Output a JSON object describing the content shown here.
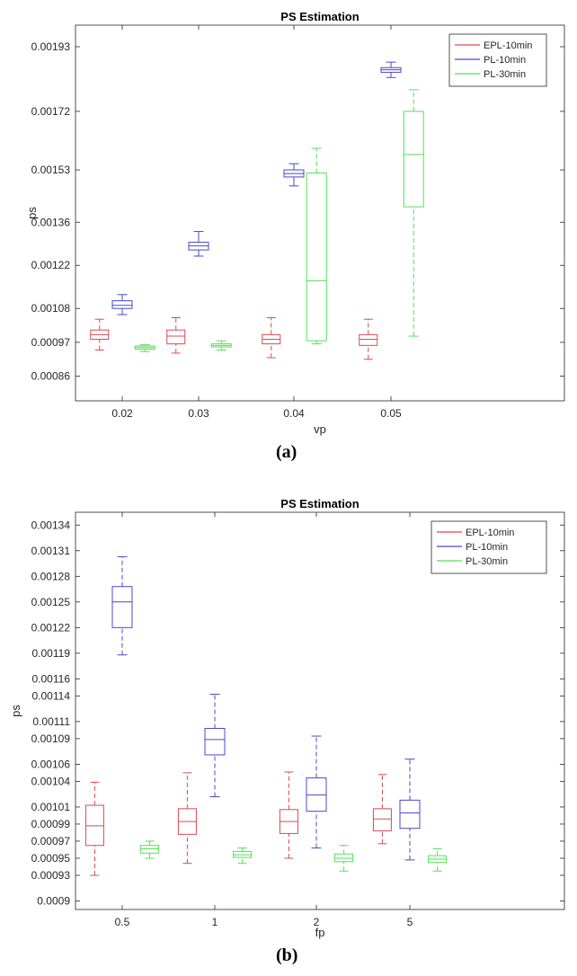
{
  "captions": {
    "a": "(a)",
    "b": "(b)"
  },
  "colors": {
    "EPL-10min": "#e0484f",
    "PL-10min": "#4a48c8",
    "PL-30min": "#55e055"
  },
  "chart_data": [
    {
      "type": "boxplot",
      "title": "PS Estimation",
      "xlabel": "vp",
      "ylabel": "ps",
      "categories": [
        "0.02",
        "0.03",
        "0.04",
        "0.05"
      ],
      "yticks": [
        "0.00086",
        "0.00097",
        "0.00108",
        "0.00122",
        "0.00136",
        "0.00153",
        "0.00172",
        "0.00193"
      ],
      "ylim": [
        0.00078,
        0.002
      ],
      "legend": [
        "EPL-10min",
        "PL-10min",
        "PL-30min"
      ],
      "legend_position": "top-right",
      "series": [
        {
          "name": "EPL-10min",
          "dashed": true,
          "boxes": [
            {
              "min": 0.000945,
              "q1": 0.00098,
              "median": 0.000995,
              "q3": 0.00101,
              "max": 0.001045
            },
            {
              "min": 0.000935,
              "q1": 0.000965,
              "median": 0.00099,
              "q3": 0.00101,
              "max": 0.00105
            },
            {
              "min": 0.00092,
              "q1": 0.000965,
              "median": 0.00098,
              "q3": 0.000995,
              "max": 0.00105
            },
            {
              "min": 0.000915,
              "q1": 0.00096,
              "median": 0.00098,
              "q3": 0.000995,
              "max": 0.001045
            }
          ]
        },
        {
          "name": "PL-10min",
          "dashed": false,
          "boxes": [
            {
              "min": 0.00106,
              "q1": 0.00108,
              "median": 0.00109,
              "q3": 0.001105,
              "max": 0.001125
            },
            {
              "min": 0.00125,
              "q1": 0.00127,
              "median": 0.001283,
              "q3": 0.001295,
              "max": 0.00133
            },
            {
              "min": 0.001478,
              "q1": 0.001507,
              "median": 0.001518,
              "q3": 0.00153,
              "max": 0.00155
            },
            {
              "min": 0.00183,
              "q1": 0.001847,
              "median": 0.001855,
              "q3": 0.001862,
              "max": 0.00188
            }
          ]
        },
        {
          "name": "PL-30min",
          "dashed": true,
          "boxes": [
            {
              "min": 0.00094,
              "q1": 0.000948,
              "median": 0.000953,
              "q3": 0.000958,
              "max": 0.000962
            },
            {
              "min": 0.000945,
              "q1": 0.000955,
              "median": 0.00096,
              "q3": 0.000965,
              "max": 0.000975
            },
            {
              "min": 0.000965,
              "q1": 0.000975,
              "median": 0.00117,
              "q3": 0.00152,
              "max": 0.0016
            },
            {
              "min": 0.00099,
              "q1": 0.00141,
              "median": 0.00158,
              "q3": 0.00172,
              "max": 0.00179
            }
          ]
        }
      ]
    },
    {
      "type": "boxplot",
      "title": "PS Estimation",
      "xlabel": "fp",
      "ylabel": "ps",
      "categories": [
        "0.5",
        "1",
        "2",
        "5"
      ],
      "yticks": [
        "0.0009",
        "0.00093",
        "0.00095",
        "0.00097",
        "0.00099",
        "0.00101",
        "0.00104",
        "0.00106",
        "0.00109",
        "0.00111",
        "0.00114",
        "0.00116",
        "0.00119",
        "0.00122",
        "0.00125",
        "0.00128",
        "0.00131",
        "0.00134"
      ],
      "ylim": [
        0.00089,
        0.001355
      ],
      "legend": [
        "EPL-10min",
        "PL-10min",
        "PL-30min"
      ],
      "legend_position": "top-right",
      "series": [
        {
          "name": "EPL-10min",
          "dashed": true,
          "boxes": [
            {
              "min": 0.00093,
              "q1": 0.000965,
              "median": 0.000988,
              "q3": 0.001012,
              "max": 0.001039
            },
            {
              "min": 0.000944,
              "q1": 0.000978,
              "median": 0.000993,
              "q3": 0.001008,
              "max": 0.00105
            },
            {
              "min": 0.00095,
              "q1": 0.000979,
              "median": 0.000993,
              "q3": 0.001007,
              "max": 0.001051
            },
            {
              "min": 0.000967,
              "q1": 0.000982,
              "median": 0.000996,
              "q3": 0.001008,
              "max": 0.001048
            }
          ]
        },
        {
          "name": "PL-10min",
          "dashed": true,
          "boxes": [
            {
              "min": 0.001188,
              "q1": 0.00122,
              "median": 0.00125,
              "q3": 0.001268,
              "max": 0.001303
            },
            {
              "min": 0.001022,
              "q1": 0.001071,
              "median": 0.001089,
              "q3": 0.001102,
              "max": 0.001142
            },
            {
              "min": 0.000962,
              "q1": 0.001005,
              "median": 0.001024,
              "q3": 0.001044,
              "max": 0.001093
            },
            {
              "min": 0.000948,
              "q1": 0.000985,
              "median": 0.001003,
              "q3": 0.001018,
              "max": 0.001066
            }
          ]
        },
        {
          "name": "PL-30min",
          "dashed": true,
          "boxes": [
            {
              "min": 0.00095,
              "q1": 0.000956,
              "median": 0.000961,
              "q3": 0.000965,
              "max": 0.00097
            },
            {
              "min": 0.000944,
              "q1": 0.000951,
              "median": 0.000954,
              "q3": 0.000958,
              "max": 0.000962
            },
            {
              "min": 0.000935,
              "q1": 0.000946,
              "median": 0.00095,
              "q3": 0.000955,
              "max": 0.000965
            },
            {
              "min": 0.000935,
              "q1": 0.000945,
              "median": 0.000949,
              "q3": 0.000953,
              "max": 0.000961
            }
          ]
        }
      ]
    }
  ]
}
